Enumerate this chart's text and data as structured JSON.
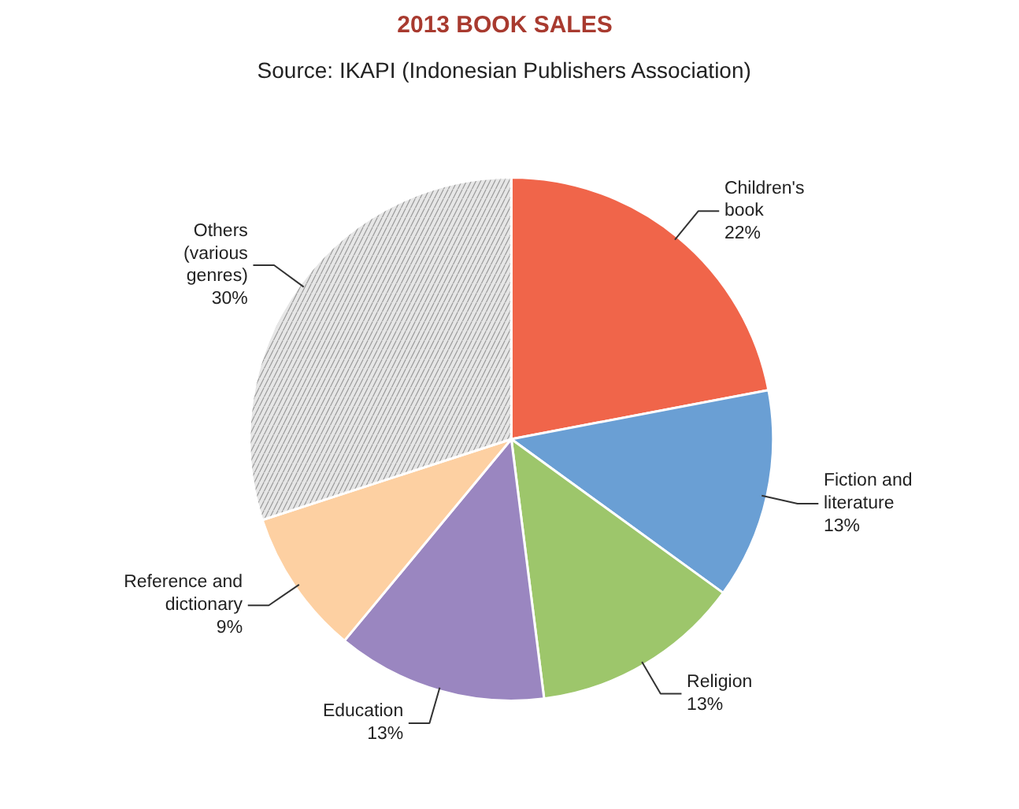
{
  "chart_data": {
    "type": "pie",
    "title": "2013 BOOK SALES",
    "subtitle": "Source: IKAPI (Indonesian Publishers Association)",
    "categories": [
      "Children's book",
      "Fiction and literature",
      "Religion",
      "Education",
      "Reference and dictionary",
      "Others (various genres)"
    ],
    "values": [
      22,
      13,
      13,
      13,
      9,
      30
    ],
    "value_labels": [
      "22%",
      "13%",
      "13%",
      "13%",
      "9%",
      "30%"
    ],
    "colors": [
      "#f0654a",
      "#6a9fd4",
      "#9dc66b",
      "#9a86c0",
      "#fdd0a2",
      "#e6e6e6"
    ]
  }
}
